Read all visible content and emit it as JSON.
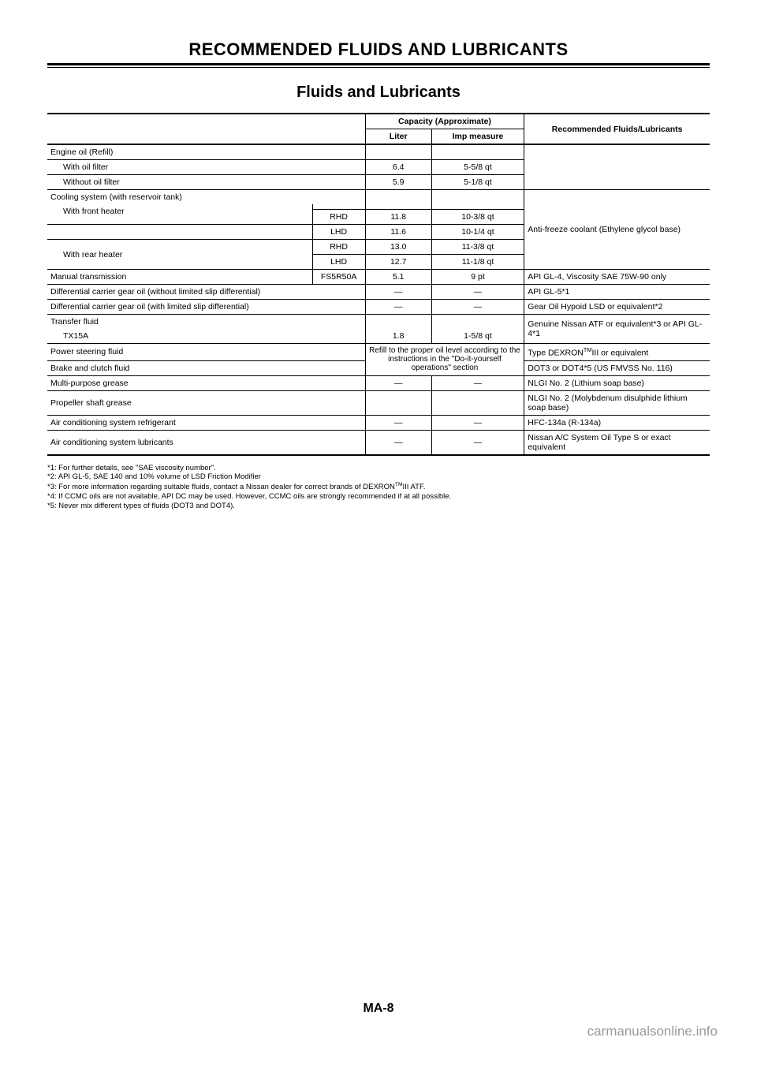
{
  "heading": "RECOMMENDED FLUIDS AND LUBRICANTS",
  "subtitle": "Fluids and Lubricants",
  "headers": {
    "capacity": "Capacity (Approximate)",
    "liter": "Liter",
    "imp": "Imp measure",
    "recommended": "Recommended Fluids/Lubricants"
  },
  "rows": {
    "engineOil": "Engine oil (Refill)",
    "withFilter": "With oil filter",
    "withFilterL": "6.4",
    "withFilterI": "5-5/8 qt",
    "withoutFilter": "Without oil filter",
    "withoutFilterL": "5.9",
    "withoutFilterI": "5-1/8 qt",
    "cooling": "Cooling system (with reservoir tank)",
    "frontHeater": "With front heater",
    "frontRHD": "RHD",
    "frontRHDL": "11.8",
    "frontRHDI": "10-3/8 qt",
    "frontLHD": "LHD",
    "frontLHDL": "11.6",
    "frontLHDI": "10-1/4 qt",
    "rearHeater": "With rear heater",
    "rearRHD": "RHD",
    "rearRHDL": "13.0",
    "rearRHDI": "11-3/8 qt",
    "rearLHD": "LHD",
    "rearLHDL": "12.7",
    "rearLHDI": "11-1/8 qt",
    "coolantRec": "Anti-freeze coolant (Ethylene glycol base)",
    "manual": "Manual transmission",
    "manualVar": "FS5R50A",
    "manualL": "5.1",
    "manualI": "9 pt",
    "manualRec": "API GL-4, Viscosity SAE 75W-90 only",
    "diffNoLSD": "Differential carrier gear oil (without limited slip differential)",
    "diffNoLSDRec": "API GL-5*1",
    "diffLSD": "Differential carrier gear oil (with limited slip differential)",
    "diffLSDRec": "Gear Oil Hypoid LSD or equivalent*2",
    "transfer": "Transfer fluid",
    "transferModel": "TX15A",
    "transferL": "1.8",
    "transferI": "1-5/8 qt",
    "transferRec": "Genuine Nissan ATF or equivalent*3 or API GL-4*1",
    "psf": "Power steering fluid",
    "refillNote": "Refill to the proper oil level according to the instructions in the \"Do-it-yourself operations\" section",
    "psfRec": "Type DEXRON™III or equivalent",
    "brake": "Brake and clutch fluid",
    "brakeRec": "DOT3 or DOT4*5 (US FMVSS No. 116)",
    "grease": "Multi-purpose grease",
    "greaseRec": "NLGI No. 2 (Lithium soap base)",
    "propeller": "Propeller shaft grease",
    "propellerRec": "NLGI No. 2 (Molybdenum disulphide lithium soap base)",
    "acRefrig": "Air conditioning system refrigerant",
    "acRefrigRec": "HFC-134a (R-134a)",
    "acLub": "Air conditioning system lubricants",
    "acLubRec": "Nissan A/C System Oil Type S or exact equivalent",
    "dash": "—"
  },
  "footnotes": {
    "f1": "*1: For further details, see \"SAE viscosity number\".",
    "f2": "*2: API GL-5, SAE 140 and 10% volume of LSD Friction Modifier",
    "f3": "*3: For more information regarding suitable fluids, contact a Nissan dealer for correct brands of DEXRON™III ATF.",
    "f4": "*4: If CCMC oils are not available, API DC may be used. However, CCMC oils are strongly recommended if at all possible.",
    "f5": "*5: Never mix different types of fluids (DOT3 and DOT4)."
  },
  "pageNum": "MA-8",
  "watermark": "carmanualsonline.info",
  "colors": {
    "text": "#000000",
    "background": "#ffffff",
    "watermark": "#9a9a9a"
  }
}
